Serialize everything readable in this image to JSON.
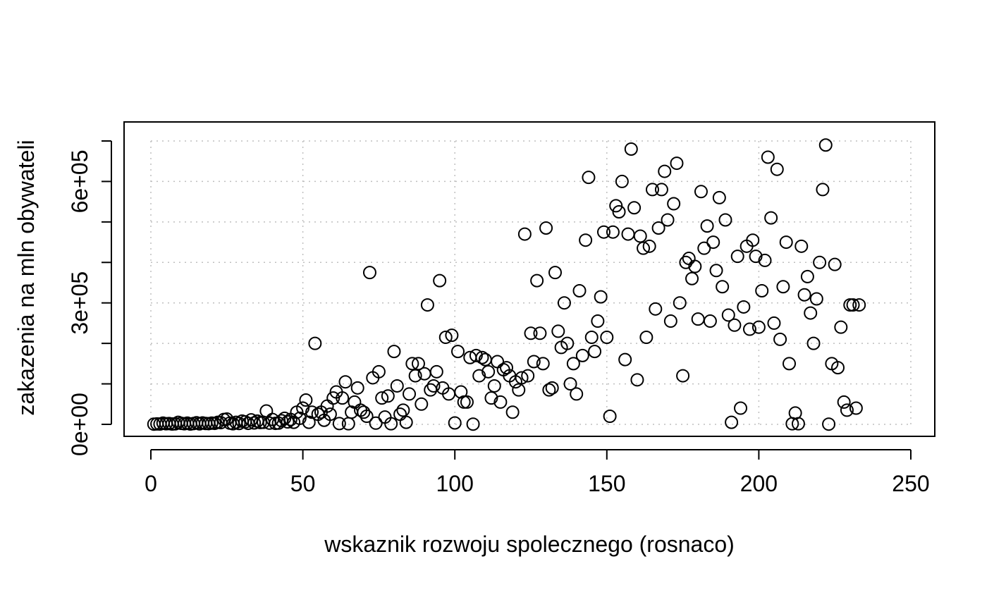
{
  "chart_data": {
    "type": "scatter",
    "title": "",
    "xlabel": "wskaznik rozwoju spolecznego (rosnaco)",
    "ylabel": "zakazenia na mln obywateli",
    "xlim": [
      0,
      250
    ],
    "ylim": [
      0,
      700000
    ],
    "x_ticks": [
      0,
      50,
      100,
      150,
      200,
      250
    ],
    "x_tick_labels": [
      "0",
      "50",
      "100",
      "150",
      "200",
      "250"
    ],
    "y_ticks": [
      0,
      100000,
      200000,
      300000,
      400000,
      500000,
      600000,
      700000
    ],
    "y_tick_labels": [
      {
        "value": 0,
        "label": "0e+00"
      },
      {
        "value": 300000,
        "label": "3e+05"
      },
      {
        "value": 600000,
        "label": "6e+05"
      }
    ],
    "grid": true,
    "marker": "open-circle",
    "colors": {
      "points": "#000000",
      "grid": "#bfbfbf",
      "frame": "#000000"
    },
    "points": [
      [
        1,
        500
      ],
      [
        2,
        1000
      ],
      [
        3,
        800
      ],
      [
        4,
        3000
      ],
      [
        5,
        1500
      ],
      [
        6,
        2000
      ],
      [
        7,
        900
      ],
      [
        8,
        1200
      ],
      [
        9,
        5000
      ],
      [
        10,
        2500
      ],
      [
        11,
        1500
      ],
      [
        12,
        3000
      ],
      [
        13,
        800
      ],
      [
        14,
        2000
      ],
      [
        15,
        4000
      ],
      [
        16,
        1200
      ],
      [
        17,
        3500
      ],
      [
        18,
        2200
      ],
      [
        19,
        1800
      ],
      [
        20,
        3000
      ],
      [
        21,
        2500
      ],
      [
        22,
        5000
      ],
      [
        23,
        4200
      ],
      [
        24,
        12000
      ],
      [
        25,
        13000
      ],
      [
        26,
        3000
      ],
      [
        27,
        1500
      ],
      [
        28,
        5000
      ],
      [
        29,
        2200
      ],
      [
        30,
        8000
      ],
      [
        31,
        6000
      ],
      [
        32,
        2500
      ],
      [
        33,
        11000
      ],
      [
        34,
        3500
      ],
      [
        35,
        8000
      ],
      [
        36,
        4500
      ],
      [
        37,
        5000
      ],
      [
        38,
        33000
      ],
      [
        39,
        3000
      ],
      [
        40,
        12000
      ],
      [
        41,
        2500
      ],
      [
        42,
        3000
      ],
      [
        43,
        9000
      ],
      [
        44,
        15000
      ],
      [
        45,
        6000
      ],
      [
        46,
        12000
      ],
      [
        47,
        5000
      ],
      [
        48,
        30000
      ],
      [
        49,
        15000
      ],
      [
        50,
        40000
      ],
      [
        51,
        60000
      ],
      [
        52,
        5000
      ],
      [
        53,
        30000
      ],
      [
        54,
        200000
      ],
      [
        55,
        25000
      ],
      [
        56,
        30000
      ],
      [
        57,
        10000
      ],
      [
        58,
        45000
      ],
      [
        59,
        25000
      ],
      [
        60,
        65000
      ],
      [
        61,
        80000
      ],
      [
        62,
        2000
      ],
      [
        63,
        65000
      ],
      [
        64,
        105000
      ],
      [
        65,
        1500
      ],
      [
        66,
        30000
      ],
      [
        67,
        55000
      ],
      [
        68,
        90000
      ],
      [
        69,
        35000
      ],
      [
        70,
        30000
      ],
      [
        71,
        20000
      ],
      [
        72,
        375000
      ],
      [
        73,
        115000
      ],
      [
        74,
        3000
      ],
      [
        75,
        130000
      ],
      [
        76,
        65000
      ],
      [
        77,
        18000
      ],
      [
        78,
        70000
      ],
      [
        79,
        1500
      ],
      [
        80,
        180000
      ],
      [
        81,
        95000
      ],
      [
        82,
        25000
      ],
      [
        83,
        35000
      ],
      [
        84,
        5000
      ],
      [
        85,
        75000
      ],
      [
        86,
        150000
      ],
      [
        87,
        120000
      ],
      [
        88,
        150000
      ],
      [
        89,
        50000
      ],
      [
        90,
        125000
      ],
      [
        91,
        295000
      ],
      [
        92,
        85000
      ],
      [
        93,
        95000
      ],
      [
        94,
        130000
      ],
      [
        95,
        355000
      ],
      [
        96,
        90000
      ],
      [
        97,
        215000
      ],
      [
        98,
        75000
      ],
      [
        99,
        220000
      ],
      [
        100,
        3500
      ],
      [
        101,
        180000
      ],
      [
        102,
        80000
      ],
      [
        103,
        55000
      ],
      [
        104,
        55000
      ],
      [
        105,
        165000
      ],
      [
        106,
        500
      ],
      [
        107,
        170000
      ],
      [
        108,
        120000
      ],
      [
        109,
        165000
      ],
      [
        110,
        160000
      ],
      [
        111,
        130000
      ],
      [
        112,
        65000
      ],
      [
        113,
        95000
      ],
      [
        114,
        155000
      ],
      [
        115,
        55000
      ],
      [
        116,
        135000
      ],
      [
        117,
        140000
      ],
      [
        118,
        120000
      ],
      [
        119,
        30000
      ],
      [
        120,
        105000
      ],
      [
        121,
        85000
      ],
      [
        122,
        115000
      ],
      [
        123,
        470000
      ],
      [
        124,
        120000
      ],
      [
        125,
        225000
      ],
      [
        126,
        155000
      ],
      [
        127,
        355000
      ],
      [
        128,
        225000
      ],
      [
        129,
        150000
      ],
      [
        130,
        485000
      ],
      [
        131,
        85000
      ],
      [
        132,
        90000
      ],
      [
        133,
        375000
      ],
      [
        134,
        230000
      ],
      [
        135,
        190000
      ],
      [
        136,
        300000
      ],
      [
        137,
        200000
      ],
      [
        138,
        100000
      ],
      [
        139,
        150000
      ],
      [
        140,
        75000
      ],
      [
        141,
        330000
      ],
      [
        142,
        170000
      ],
      [
        143,
        455000
      ],
      [
        144,
        610000
      ],
      [
        145,
        215000
      ],
      [
        146,
        180000
      ],
      [
        147,
        255000
      ],
      [
        148,
        315000
      ],
      [
        149,
        475000
      ],
      [
        150,
        215000
      ],
      [
        151,
        20000
      ],
      [
        152,
        475000
      ],
      [
        153,
        540000
      ],
      [
        154,
        525000
      ],
      [
        155,
        600000
      ],
      [
        156,
        160000
      ],
      [
        157,
        470000
      ],
      [
        158,
        680000
      ],
      [
        159,
        535000
      ],
      [
        160,
        110000
      ],
      [
        161,
        465000
      ],
      [
        162,
        435000
      ],
      [
        163,
        215000
      ],
      [
        164,
        440000
      ],
      [
        165,
        580000
      ],
      [
        166,
        285000
      ],
      [
        167,
        485000
      ],
      [
        168,
        580000
      ],
      [
        169,
        625000
      ],
      [
        170,
        505000
      ],
      [
        171,
        255000
      ],
      [
        172,
        545000
      ],
      [
        173,
        645000
      ],
      [
        174,
        300000
      ],
      [
        175,
        120000
      ],
      [
        176,
        400000
      ],
      [
        177,
        410000
      ],
      [
        178,
        360000
      ],
      [
        179,
        390000
      ],
      [
        180,
        260000
      ],
      [
        181,
        575000
      ],
      [
        182,
        435000
      ],
      [
        183,
        490000
      ],
      [
        184,
        255000
      ],
      [
        185,
        450000
      ],
      [
        186,
        380000
      ],
      [
        187,
        560000
      ],
      [
        188,
        340000
      ],
      [
        189,
        505000
      ],
      [
        190,
        270000
      ],
      [
        191,
        5000
      ],
      [
        192,
        245000
      ],
      [
        193,
        415000
      ],
      [
        194,
        40000
      ],
      [
        195,
        290000
      ],
      [
        196,
        440000
      ],
      [
        197,
        235000
      ],
      [
        198,
        455000
      ],
      [
        199,
        415000
      ],
      [
        200,
        240000
      ],
      [
        201,
        330000
      ],
      [
        202,
        405000
      ],
      [
        203,
        660000
      ],
      [
        204,
        510000
      ],
      [
        205,
        250000
      ],
      [
        206,
        630000
      ],
      [
        207,
        210000
      ],
      [
        208,
        340000
      ],
      [
        209,
        450000
      ],
      [
        210,
        150000
      ],
      [
        211,
        1500
      ],
      [
        212,
        28000
      ],
      [
        213,
        1500
      ],
      [
        214,
        440000
      ],
      [
        215,
        320000
      ],
      [
        216,
        365000
      ],
      [
        217,
        275000
      ],
      [
        218,
        200000
      ],
      [
        219,
        310000
      ],
      [
        220,
        400000
      ],
      [
        221,
        580000
      ],
      [
        222,
        690000
      ],
      [
        223,
        500
      ],
      [
        224,
        150000
      ],
      [
        225,
        395000
      ],
      [
        226,
        140000
      ],
      [
        227,
        240000
      ],
      [
        228,
        55000
      ],
      [
        229,
        35000
      ],
      [
        230,
        295000
      ],
      [
        231,
        295000
      ],
      [
        232,
        40000
      ],
      [
        233,
        295000
      ]
    ]
  }
}
